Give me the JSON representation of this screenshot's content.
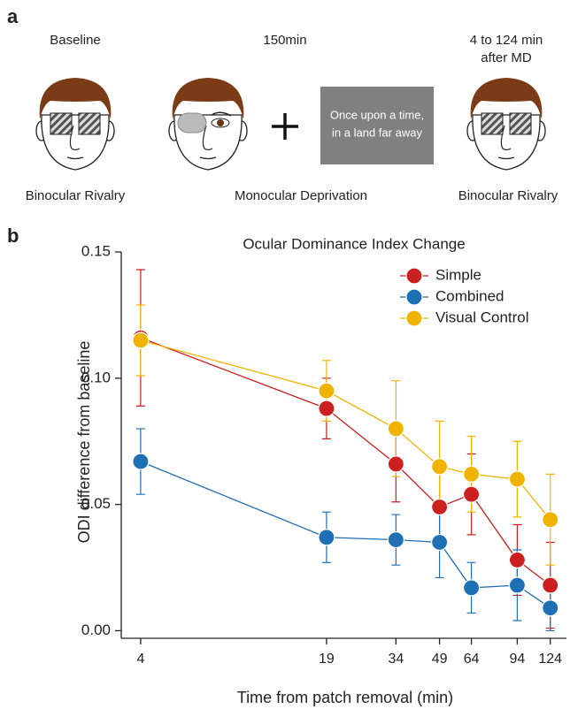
{
  "panel_labels": [
    "a",
    "b"
  ],
  "schematic": {
    "baseline": {
      "heading": "Baseline",
      "caption": "Binocular Rivalry"
    },
    "deprivation": {
      "heading": "150min",
      "caption": "Monocular Deprivation",
      "screen_text": [
        "Once upon a time,",
        "in a land far away"
      ]
    },
    "after": {
      "heading": [
        "4 to 124 min",
        "after MD"
      ],
      "caption": "Binocular Rivalry"
    }
  },
  "chart_data": {
    "type": "line",
    "title": "Ocular Dominance Index Change",
    "x_label": "Time from patch removal (min)",
    "y_label": "ODI difference from baseline",
    "x": [
      4,
      19,
      34,
      49,
      64,
      94,
      124
    ],
    "xscale": "log",
    "xlim": [
      3.4,
      142
    ],
    "xticks": [
      4,
      19,
      34,
      49,
      64,
      94,
      124
    ],
    "ylim": [
      -0.003,
      0.15
    ],
    "yticks": [
      {
        "value": 0,
        "label": "0.00"
      },
      0.05,
      {
        "value": 0.1,
        "label": "0.10"
      },
      0.15
    ],
    "legend": "top-right",
    "series": [
      {
        "name": "Simple",
        "color": "#cc1f1f",
        "values": [
          0.116,
          0.088,
          0.066,
          0.049,
          0.054,
          0.028,
          0.018
        ],
        "errors": [
          0.027,
          0.012,
          0.015,
          0.015,
          0.016,
          0.014,
          0.017
        ]
      },
      {
        "name": "Combined",
        "color": "#1f6fb4",
        "values": [
          0.067,
          0.037,
          0.036,
          0.035,
          0.017,
          0.018,
          0.009
        ],
        "errors": [
          0.013,
          0.01,
          0.01,
          0.014,
          0.01,
          0.014,
          0.009
        ]
      },
      {
        "name": "Visual Control",
        "color": "#f0b400",
        "values": [
          0.115,
          0.095,
          0.08,
          0.065,
          0.062,
          0.06,
          0.044
        ],
        "errors": [
          0.014,
          0.012,
          0.019,
          0.018,
          0.015,
          0.015,
          0.018
        ]
      }
    ]
  }
}
